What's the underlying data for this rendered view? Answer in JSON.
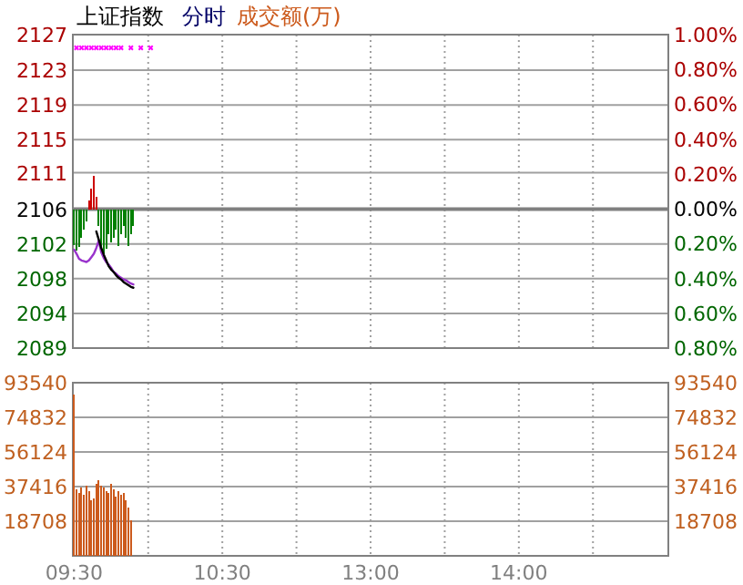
{
  "chart_data": [
    {
      "type": "line",
      "title": "上证指数",
      "subtitle": "分时",
      "annotations": [
        "成交额(万)"
      ],
      "tick_labels": "y",
      "grid": true,
      "categories": [
        null,
        null,
        null,
        null,
        null,
        null,
        null,
        null,
        null,
        null,
        null,
        null,
        null,
        null,
        null,
        null,
        null,
        null,
        null,
        null,
        null,
        null,
        null,
        null,
        null,
        null,
        null,
        null,
        null,
        null,
        null,
        null,
        null,
        null,
        null,
        null,
        null,
        null,
        null,
        null,
        null,
        null,
        null,
        null,
        null,
        null,
        null,
        null,
        null,
        null,
        null,
        null,
        null,
        null,
        null,
        null,
        null,
        null,
        null,
        null,
        null,
        null,
        null,
        null,
        null,
        null,
        null,
        null,
        null,
        null,
        null,
        null,
        null,
        null,
        null,
        null,
        null,
        null,
        null,
        null,
        null,
        null,
        null,
        null,
        null,
        null,
        null,
        null,
        null,
        null,
        null,
        null,
        null,
        null,
        null,
        null,
        null,
        null,
        null,
        null,
        null,
        null,
        null,
        null,
        null,
        null,
        null,
        null,
        null,
        null,
        null,
        null,
        null,
        null,
        null,
        null,
        null,
        null,
        null,
        null,
        null,
        null,
        null,
        null,
        null,
        null,
        null,
        null,
        null,
        null,
        null,
        null,
        null,
        null,
        null,
        null,
        null,
        null,
        null,
        null,
        null,
        null,
        null,
        null,
        null,
        null,
        null,
        null,
        null,
        null,
        null,
        null,
        null,
        null,
        null,
        null,
        null,
        null,
        null,
        null,
        null,
        null,
        null,
        null,
        null,
        null,
        null,
        null,
        null,
        null,
        null,
        null,
        null,
        null,
        null,
        null,
        null,
        null,
        null,
        null,
        null,
        null,
        null,
        null,
        null,
        null,
        null,
        null,
        null,
        null,
        null,
        null,
        null,
        null,
        null,
        null,
        null,
        null,
        null,
        null,
        null,
        null,
        null,
        null,
        null,
        null,
        null,
        null,
        null,
        null,
        null,
        null,
        null,
        null,
        null,
        null,
        null,
        null,
        null,
        null,
        null,
        null,
        null,
        null,
        null,
        null,
        null,
        null,
        null,
        null,
        null,
        null,
        null,
        null,
        null,
        null,
        null,
        null,
        null,
        null,
        null
      ],
      "ylim": [
        2089.4,
        2127.3
      ],
      "yticks": [
        {
          "value": 2127.3,
          "label": "2127"
        },
        {
          "value": 2123.0,
          "label": "2123"
        },
        {
          "value": 2118.8,
          "label": "2119"
        },
        {
          "value": 2114.6,
          "label": "2115"
        },
        {
          "value": 2110.6,
          "label": "2111"
        },
        {
          "value": 2106.2,
          "label": "2106"
        },
        {
          "value": 2102.0,
          "label": "2102"
        },
        {
          "value": 2097.8,
          "label": "2098"
        },
        {
          "value": 2093.6,
          "label": "2094"
        },
        {
          "value": 2089.4,
          "label": "2089"
        }
      ],
      "y2lim": [
        -0.8,
        1.0
      ],
      "y2ticks": [
        {
          "value": 1.0,
          "label": "1.00%"
        },
        {
          "value": 0.8,
          "label": "0.80%"
        },
        {
          "value": 0.6,
          "label": "0.60%"
        },
        {
          "value": 0.4,
          "label": "0.40%"
        },
        {
          "value": 0.2,
          "label": "0.20%"
        },
        {
          "value": 0,
          "label": "0.00%"
        },
        {
          "value": -0.2,
          "label": "0.20%"
        },
        {
          "value": -0.4,
          "label": "0.40%"
        },
        {
          "value": -0.6,
          "label": "0.60%"
        },
        {
          "value": -0.8,
          "label": "0.80%"
        }
      ],
      "ref_lines": [
        {
          "axis": "y",
          "value": 2106.2,
          "color": "#808080"
        }
      ],
      "series": [
        {
          "type": "bar",
          "base": [
            2106.2,
            2106.2,
            2106.2,
            2106.2,
            2106.2,
            2106.2,
            2106.2,
            2106.2,
            2106.2,
            2106.2,
            2106.2,
            2106.2,
            2106.2,
            2106.2,
            2106.2,
            2106.2,
            2106.2,
            2106.2,
            2106.2,
            2106.2,
            2106.2,
            2106.2,
            2106.2,
            2106.2,
            2106.2,
            null,
            null,
            null,
            null,
            null,
            null,
            null,
            null,
            null,
            null,
            null,
            null,
            null,
            null,
            null,
            null,
            null,
            null,
            null,
            null,
            null,
            null,
            null,
            null,
            null,
            null,
            null,
            null,
            null,
            null,
            null,
            null,
            null,
            null,
            null,
            null,
            null,
            null,
            null,
            null,
            null,
            null,
            null,
            null,
            null,
            null,
            null,
            null,
            null,
            null,
            null,
            null,
            null,
            null,
            null,
            null,
            null,
            null,
            null,
            null,
            null,
            null,
            null,
            null,
            null,
            null,
            null,
            null,
            null,
            null,
            null,
            null,
            null,
            null,
            null,
            null,
            null,
            null,
            null,
            null,
            null,
            null,
            null,
            null,
            null,
            null,
            null,
            null,
            null,
            null,
            null,
            null,
            null,
            null,
            null,
            null,
            null,
            null,
            null,
            null,
            null,
            null,
            null,
            null,
            null,
            null,
            null,
            null,
            null,
            null,
            null,
            null,
            null,
            null,
            null,
            null,
            null,
            null,
            null,
            null,
            null,
            null,
            null,
            null,
            null,
            null,
            null,
            null,
            null,
            null,
            null,
            null,
            null,
            null,
            null,
            null,
            null,
            null,
            null,
            null,
            null,
            null,
            null,
            null,
            null,
            null,
            null,
            null,
            null,
            null,
            null,
            null,
            null,
            null,
            null,
            null,
            null,
            null,
            null,
            null,
            null,
            null,
            null,
            null,
            null,
            null,
            null,
            null,
            null,
            null,
            null,
            null,
            null,
            null,
            null,
            null,
            null,
            null,
            null,
            null,
            null,
            null,
            null,
            null,
            null,
            null,
            null,
            null,
            null,
            null,
            null,
            null,
            null,
            null,
            null,
            null,
            null,
            null,
            null,
            null,
            null,
            null,
            null,
            null,
            null,
            null,
            null,
            null,
            null,
            null,
            null,
            null,
            null,
            null,
            null,
            null
          ],
          "values": [
            -4.4,
            -5.0,
            -4.6,
            -3.5,
            -2.5,
            -1.5,
            1.0,
            2.5,
            4.0,
            1.5,
            -2.0,
            -4.5,
            -5.5,
            -4.8,
            -3.0,
            -4.0,
            -3.5,
            -2.5,
            -4.5,
            -3.0,
            -2.0,
            -3.5,
            -4.5,
            -3.0,
            -2.0,
            null,
            null,
            null,
            null,
            null,
            null,
            null,
            null,
            null,
            null,
            null,
            null,
            null,
            null,
            null,
            null,
            null,
            null,
            null,
            null,
            null,
            null,
            null,
            null,
            null,
            null,
            null,
            null,
            null,
            null,
            null,
            null,
            null,
            null,
            null,
            null,
            null,
            null,
            null,
            null,
            null,
            null,
            null,
            null,
            null,
            null,
            null,
            null,
            null,
            null,
            null,
            null,
            null,
            null,
            null,
            null,
            null,
            null,
            null,
            null,
            null,
            null,
            null,
            null,
            null,
            null,
            null,
            null,
            null,
            null,
            null,
            null,
            null,
            null,
            null,
            null,
            null,
            null,
            null,
            null,
            null,
            null,
            null,
            null,
            null,
            null,
            null,
            null,
            null,
            null,
            null,
            null,
            null,
            null,
            null,
            null,
            null,
            null,
            null,
            null,
            null,
            null,
            null,
            null,
            null,
            null,
            null,
            null,
            null,
            null,
            null,
            null,
            null,
            null,
            null,
            null,
            null,
            null,
            null,
            null,
            null,
            null,
            null,
            null,
            null,
            null,
            null,
            null,
            null,
            null,
            null,
            null,
            null,
            null,
            null,
            null,
            null,
            null,
            null,
            null,
            null,
            null,
            null,
            null,
            null,
            null,
            null,
            null,
            null,
            null,
            null,
            null,
            null,
            null,
            null,
            null,
            null,
            null,
            null,
            null,
            null,
            null,
            null,
            null,
            null,
            null,
            null,
            null,
            null,
            null,
            null,
            null,
            null,
            null,
            null,
            null,
            null,
            null,
            null,
            null,
            null,
            null,
            null,
            null,
            null,
            null,
            null,
            null,
            null,
            null,
            null,
            null,
            null,
            null,
            null,
            null,
            null,
            null,
            null,
            null,
            null,
            null,
            null,
            null,
            null,
            null,
            null,
            null,
            null,
            null,
            null,
            null,
            null,
            null,
            null,
            null
          ],
          "colors": [
            "#008000",
            "#008000",
            "#008000",
            "#008000",
            "#008000",
            "#008000",
            "#cc0000",
            "#cc0000",
            "#cc0000",
            "#cc0000",
            "#008000",
            "#008000",
            "#008000",
            "#008000",
            "#008000",
            "#008000",
            "#008000",
            "#008000",
            "#008000",
            "#008000",
            "#008000",
            "#008000",
            "#008000",
            "#008000",
            "#008000",
            null,
            null,
            null,
            null,
            null,
            null,
            null,
            null,
            null,
            null,
            null,
            null,
            null,
            null,
            null,
            null,
            null,
            null,
            null,
            null,
            null,
            null,
            null,
            null,
            null,
            null,
            null,
            null,
            null,
            null,
            null,
            null,
            null,
            null,
            null,
            null,
            null,
            null,
            null,
            null,
            null,
            null,
            null,
            null,
            null,
            null,
            null,
            null,
            null,
            null,
            null,
            null,
            null,
            null,
            null,
            null,
            null,
            null,
            null,
            null,
            null,
            null,
            null,
            null,
            null,
            null,
            null,
            null,
            null,
            null,
            null,
            null,
            null,
            null,
            null,
            null,
            null,
            null,
            null,
            null,
            null,
            null,
            null,
            null,
            null,
            null,
            null,
            null,
            null,
            null,
            null,
            null,
            null,
            null,
            null,
            null,
            null,
            null,
            null,
            null,
            null,
            null,
            null,
            null,
            null,
            null,
            null,
            null,
            null,
            null,
            null,
            null,
            null,
            null,
            null,
            null,
            null,
            null,
            null,
            null,
            null,
            null,
            null,
            null,
            null,
            null,
            null,
            null,
            null,
            null,
            null,
            null,
            null,
            null,
            null,
            null,
            null,
            null,
            null,
            null,
            null,
            null,
            null,
            null,
            null,
            null,
            null,
            null,
            null,
            null,
            null,
            null,
            null,
            null,
            null,
            null,
            null,
            null,
            null,
            null,
            null,
            null,
            null,
            null,
            null,
            null,
            null,
            null,
            null,
            null,
            null,
            null,
            null,
            null,
            null,
            null,
            null,
            null,
            null,
            null,
            null,
            null,
            null,
            null,
            null,
            null,
            null,
            null,
            null,
            null,
            null,
            null,
            null,
            null,
            null,
            null,
            null,
            null,
            null,
            null,
            null,
            null,
            null,
            null,
            null,
            null,
            null,
            null,
            null,
            null,
            null,
            null,
            null,
            null,
            null,
            null
          ]
        },
        {
          "color": "#9933cc",
          "values": [
            2101.3,
            2100.8,
            2100.2,
            2100.0,
            2099.9,
            2099.8,
            2100.0,
            2100.4,
            2100.8,
            2101.5,
            2102.4,
            2101.0,
            2100.3,
            2099.8,
            2099.5,
            2099.1,
            2098.6,
            2098.4,
            2098.1,
            2097.9,
            2097.7,
            2097.6,
            2097.4,
            2097.2,
            2097.1,
            null,
            null,
            null,
            null,
            null,
            null,
            null,
            null,
            null,
            null,
            null,
            null,
            null,
            null,
            null,
            null,
            null,
            null,
            null,
            null,
            null,
            null,
            null,
            null,
            null,
            null,
            null,
            null,
            null,
            null,
            null,
            null,
            null,
            null,
            null,
            null,
            null,
            null,
            null,
            null,
            null,
            null,
            null,
            null,
            null,
            null,
            null,
            null,
            null,
            null,
            null,
            null,
            null,
            null,
            null,
            null,
            null,
            null,
            null,
            null,
            null,
            null,
            null,
            null,
            null,
            null,
            null,
            null,
            null,
            null,
            null,
            null,
            null,
            null,
            null,
            null,
            null,
            null,
            null,
            null,
            null,
            null,
            null,
            null,
            null,
            null,
            null,
            null,
            null,
            null,
            null,
            null,
            null,
            null,
            null,
            null,
            null,
            null,
            null,
            null,
            null,
            null,
            null,
            null,
            null,
            null,
            null,
            null,
            null,
            null,
            null,
            null,
            null,
            null,
            null,
            null,
            null,
            null,
            null,
            null,
            null,
            null,
            null,
            null,
            null,
            null,
            null,
            null,
            null,
            null,
            null,
            null,
            null,
            null,
            null,
            null,
            null,
            null,
            null,
            null,
            null,
            null,
            null,
            null,
            null,
            null,
            null,
            null,
            null,
            null,
            null,
            null,
            null,
            null,
            null,
            null,
            null,
            null,
            null,
            null,
            null,
            null,
            null,
            null,
            null,
            null,
            null,
            null,
            null,
            null,
            null,
            null,
            null,
            null,
            null,
            null,
            null,
            null,
            null,
            null,
            null,
            null,
            null,
            null,
            null,
            null,
            null,
            null,
            null,
            null,
            null,
            null,
            null,
            null,
            null,
            null,
            null,
            null,
            null,
            null,
            null,
            null,
            null,
            null,
            null,
            null,
            null,
            null,
            null,
            null,
            null,
            null,
            null,
            null,
            null,
            null
          ]
        },
        {
          "type": "line",
          "color": "#000000",
          "values": [
            null,
            null,
            null,
            null,
            null,
            null,
            null,
            null,
            null,
            2103.5,
            2102.5,
            2101.5,
            2100.7,
            2100.0,
            2099.3,
            2098.9,
            2098.6,
            2098.2,
            2097.9,
            2097.7,
            2097.4,
            2097.2,
            2097.0,
            2096.8,
            2096.7,
            null,
            null,
            null,
            null,
            null,
            null,
            null,
            null,
            null,
            null,
            null,
            null,
            null,
            null,
            null,
            null,
            null,
            null,
            null,
            null,
            null,
            null,
            null,
            null,
            null,
            null,
            null,
            null,
            null,
            null,
            null,
            null,
            null,
            null,
            null,
            null,
            null,
            null,
            null,
            null,
            null,
            null,
            null,
            null,
            null,
            null,
            null,
            null,
            null,
            null,
            null,
            null,
            null,
            null,
            null,
            null,
            null,
            null,
            null,
            null,
            null,
            null,
            null,
            null,
            null,
            null,
            null,
            null,
            null,
            null,
            null,
            null,
            null,
            null,
            null,
            null,
            null,
            null,
            null,
            null,
            null,
            null,
            null,
            null,
            null,
            null,
            null,
            null,
            null,
            null,
            null,
            null,
            null,
            null,
            null,
            null,
            null,
            null,
            null,
            null,
            null,
            null,
            null,
            null,
            null,
            null,
            null,
            null,
            null,
            null,
            null,
            null,
            null,
            null,
            null,
            null,
            null,
            null,
            null,
            null,
            null,
            null,
            null,
            null,
            null,
            null,
            null,
            null,
            null,
            null,
            null,
            null,
            null,
            null,
            null,
            null,
            null,
            null,
            null,
            null,
            null,
            null,
            null,
            null,
            null,
            null,
            null,
            null,
            null,
            null,
            null,
            null,
            null,
            null,
            null,
            null,
            null,
            null,
            null,
            null,
            null,
            null,
            null,
            null,
            null,
            null,
            null,
            null,
            null,
            null,
            null,
            null,
            null,
            null,
            null,
            null,
            null,
            null,
            null,
            null,
            null,
            null,
            null,
            null,
            null,
            null,
            null,
            null,
            null,
            null,
            null,
            null,
            null,
            null,
            null,
            null,
            null,
            null,
            null,
            null,
            null,
            null,
            null,
            null,
            null,
            null,
            null,
            null,
            null,
            null,
            null,
            null,
            null,
            null,
            null,
            null
          ]
        },
        {
          "type": "scatter",
          "marker": "cross",
          "color": "#ff00ff",
          "values": [
            null,
            2125.7,
            null,
            2125.7,
            null,
            2125.7,
            null,
            2125.7,
            null,
            2125.7,
            null,
            2125.7,
            null,
            2125.7,
            null,
            2125.7,
            null,
            2125.7,
            null,
            2125.7,
            null,
            null,
            null,
            2125.7,
            null,
            null,
            null,
            2125.7,
            null,
            null,
            null,
            2125.7,
            null,
            null,
            null,
            null,
            null,
            null,
            null,
            null,
            null,
            null,
            null,
            null,
            null,
            null,
            null,
            null,
            null,
            null,
            null,
            null,
            null,
            null,
            null,
            null,
            null,
            null,
            null,
            null,
            null,
            null,
            null,
            null,
            null,
            null,
            null,
            null,
            null,
            null,
            null,
            null,
            null,
            null,
            null,
            null,
            null,
            null,
            null,
            null,
            null,
            null,
            null,
            null,
            null,
            null,
            null,
            null,
            null,
            null,
            null,
            null,
            null,
            null,
            null,
            null,
            null,
            null,
            null,
            null,
            null,
            null,
            null,
            null,
            null,
            null,
            null,
            null,
            null,
            null,
            null,
            null,
            null,
            null,
            null,
            null,
            null,
            null,
            null,
            null,
            null,
            null,
            null,
            null,
            null,
            null,
            null,
            null,
            null,
            null,
            null,
            null,
            null,
            null,
            null,
            null,
            null,
            null,
            null,
            null,
            null,
            null,
            null,
            null,
            null,
            null,
            null,
            null,
            null,
            null,
            null,
            null,
            null,
            null,
            null,
            null,
            null,
            null,
            null,
            null,
            null,
            null,
            null,
            null,
            null,
            null,
            null,
            null,
            null,
            null,
            null,
            null,
            null,
            null,
            null,
            null,
            null,
            null,
            null,
            null,
            null,
            null,
            null,
            null,
            null,
            null,
            null,
            null,
            null,
            null,
            null,
            null,
            null,
            null,
            null,
            null,
            null,
            null,
            null,
            null,
            null,
            null,
            null,
            null,
            null,
            null,
            null,
            null,
            null,
            null,
            null,
            null,
            null,
            null,
            null,
            null,
            null,
            null,
            null,
            null,
            null,
            null,
            null,
            null,
            null,
            null,
            null,
            null,
            null,
            null,
            null,
            null,
            null,
            null,
            null,
            null,
            null,
            null,
            null,
            null,
            null
          ]
        }
      ]
    },
    {
      "type": "bar",
      "grid": true,
      "color": "#cc5a1c",
      "categories": [
        "09:30",
        null,
        null,
        null,
        null,
        null,
        null,
        null,
        null,
        null,
        null,
        null,
        null,
        null,
        null,
        null,
        null,
        null,
        null,
        null,
        null,
        null,
        null,
        null,
        null,
        null,
        null,
        null,
        null,
        null,
        null,
        null,
        null,
        null,
        null,
        null,
        null,
        null,
        null,
        null,
        null,
        null,
        null,
        null,
        null,
        null,
        null,
        null,
        null,
        null,
        null,
        null,
        null,
        null,
        null,
        null,
        null,
        null,
        null,
        null,
        "10:30",
        null,
        null,
        null,
        null,
        null,
        null,
        null,
        null,
        null,
        null,
        null,
        null,
        null,
        null,
        null,
        null,
        null,
        null,
        null,
        null,
        null,
        null,
        null,
        null,
        null,
        null,
        null,
        null,
        null,
        null,
        null,
        null,
        null,
        null,
        null,
        null,
        null,
        null,
        null,
        null,
        null,
        null,
        null,
        null,
        null,
        null,
        null,
        null,
        null,
        null,
        null,
        null,
        null,
        null,
        null,
        null,
        null,
        null,
        null,
        "13:00",
        null,
        null,
        null,
        null,
        null,
        null,
        null,
        null,
        null,
        null,
        null,
        null,
        null,
        null,
        null,
        null,
        null,
        null,
        null,
        null,
        null,
        null,
        null,
        null,
        null,
        null,
        null,
        null,
        null,
        null,
        null,
        null,
        null,
        null,
        null,
        null,
        null,
        null,
        null,
        null,
        null,
        null,
        null,
        null,
        null,
        null,
        null,
        null,
        null,
        null,
        null,
        null,
        null,
        null,
        null,
        null,
        null,
        null,
        null,
        "14:00",
        null,
        null,
        null,
        null,
        null,
        null,
        null,
        null,
        null,
        null,
        null,
        null,
        null,
        null,
        null,
        null,
        null,
        null,
        null,
        null,
        null,
        null,
        null,
        null,
        null,
        null,
        null,
        null,
        null,
        null,
        null,
        null,
        null,
        null,
        null,
        null,
        null,
        null,
        null,
        null,
        null,
        null,
        null,
        null,
        null,
        null,
        null,
        null,
        null,
        null,
        null,
        null,
        null,
        null,
        null,
        null,
        null,
        null,
        null,
        null
      ],
      "values": [
        87000,
        36000,
        34000,
        37000,
        33000,
        38000,
        35000,
        30000,
        31000,
        39000,
        41000,
        38000,
        37000,
        35000,
        34000,
        39000,
        36000,
        32000,
        35000,
        33000,
        34000,
        30000,
        26000,
        19000,
        null,
        null,
        null,
        null,
        null,
        null,
        null,
        null,
        null,
        null,
        null,
        null,
        null,
        null,
        null,
        null,
        null,
        null,
        null,
        null,
        null,
        null,
        null,
        null,
        null,
        null,
        null,
        null,
        null,
        null,
        null,
        null,
        null,
        null,
        null,
        null,
        null,
        null,
        null,
        null,
        null,
        null,
        null,
        null,
        null,
        null,
        null,
        null,
        null,
        null,
        null,
        null,
        null,
        null,
        null,
        null,
        null,
        null,
        null,
        null,
        null,
        null,
        null,
        null,
        null,
        null,
        null,
        null,
        null,
        null,
        null,
        null,
        null,
        null,
        null,
        null,
        null,
        null,
        null,
        null,
        null,
        null,
        null,
        null,
        null,
        null,
        null,
        null,
        null,
        null,
        null,
        null,
        null,
        null,
        null,
        null,
        null,
        null,
        null,
        null,
        null,
        null,
        null,
        null,
        null,
        null,
        null,
        null,
        null,
        null,
        null,
        null,
        null,
        null,
        null,
        null,
        null,
        null,
        null,
        null,
        null,
        null,
        null,
        null,
        null,
        null,
        null,
        null,
        null,
        null,
        null,
        null,
        null,
        null,
        null,
        null,
        null,
        null,
        null,
        null,
        null,
        null,
        null,
        null,
        null,
        null,
        null,
        null,
        null,
        null,
        null,
        null,
        null,
        null,
        null,
        null,
        null,
        null,
        null,
        null,
        null,
        null,
        null,
        null,
        null,
        null,
        null,
        null,
        null,
        null,
        null,
        null,
        null,
        null,
        null,
        null,
        null,
        null,
        null,
        null,
        null,
        null,
        null,
        null,
        null,
        null,
        null,
        null,
        null,
        null,
        null,
        null,
        null,
        null,
        null,
        null,
        null,
        null,
        null,
        null,
        null,
        null,
        null,
        null,
        null,
        null,
        null,
        null,
        null,
        null,
        null,
        null,
        null,
        null,
        null,
        null,
        null
      ],
      "ylim": [
        0,
        93540
      ],
      "yticks": [
        93540,
        74832,
        56124,
        37416,
        18708
      ],
      "y2lim": [
        0,
        93540
      ],
      "y2ticks": [
        93540,
        74832,
        56124,
        37416,
        18708
      ]
    }
  ]
}
